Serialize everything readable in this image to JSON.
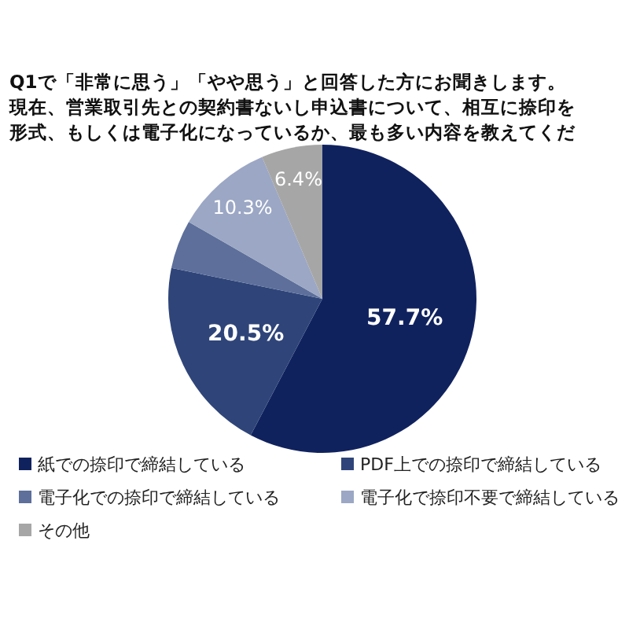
{
  "chart_data": {
    "type": "pie",
    "title": "Q1で「非常に思う」「やや思う」と回答した方にお聞きします。",
    "subtitle": "現在、営業取引先との契約書ないし申込書について、相互に捺印を形式、もしくは電子化になっているか、最も多い内容を教えてくだ",
    "categories": [
      "紙での捺印で締結している",
      "PDF上での捺印で締結している",
      "電子化での捺印で締結している",
      "電子化で捺印不要で締結している",
      "その他"
    ],
    "values": [
      57.7,
      20.5,
      5.1,
      10.3,
      6.4
    ],
    "value_labels": [
      "57.7%",
      "20.5%",
      null,
      "10.3%",
      "6.4%"
    ],
    "colors": [
      "#10225e",
      "#2f4579",
      "#5d6f9a",
      "#9ba7c4",
      "#a6a6a6"
    ],
    "legend": "bottom"
  }
}
